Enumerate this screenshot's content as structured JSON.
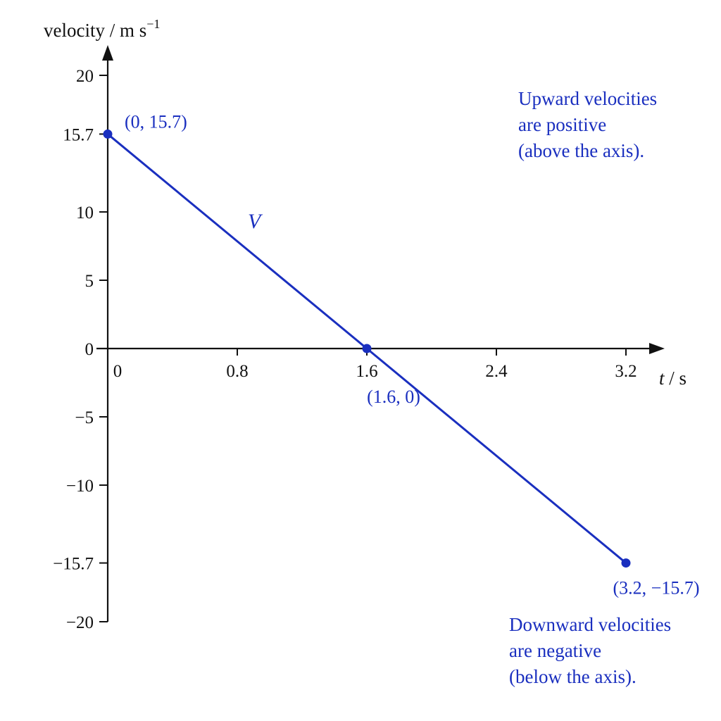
{
  "chart_data": {
    "type": "line",
    "title": "",
    "ylabel": "velocity / m s",
    "ylabel_superscript": "−1",
    "xlabel_var": "t",
    "xlabel_unit": " / s",
    "xlim": [
      0,
      3.2
    ],
    "ylim": [
      -20,
      20
    ],
    "x_ticks": [
      {
        "value": 0,
        "label": "0"
      },
      {
        "value": 0.8,
        "label": "0.8"
      },
      {
        "value": 1.6,
        "label": "1.6"
      },
      {
        "value": 2.4,
        "label": "2.4"
      },
      {
        "value": 3.2,
        "label": "3.2"
      }
    ],
    "y_ticks": [
      {
        "value": 20,
        "label": "20"
      },
      {
        "value": 15.7,
        "label": "15.7"
      },
      {
        "value": 10,
        "label": "10"
      },
      {
        "value": 5,
        "label": "5"
      },
      {
        "value": 0,
        "label": "0"
      },
      {
        "value": -5,
        "label": "−5"
      },
      {
        "value": -10,
        "label": "−10"
      },
      {
        "value": -15.7,
        "label": "−15.7"
      },
      {
        "value": -20,
        "label": "−20"
      }
    ],
    "grid": false,
    "series": [
      {
        "name": "V",
        "x": [
          0,
          1.6,
          3.2
        ],
        "y": [
          15.7,
          0,
          -15.7
        ]
      }
    ],
    "point_labels": [
      {
        "x": 0,
        "y": 15.7,
        "label": "(0, 15.7)"
      },
      {
        "x": 1.6,
        "y": 0,
        "label": "(1.6, 0)"
      },
      {
        "x": 3.2,
        "y": -15.7,
        "label": "(3.2, −15.7)"
      }
    ],
    "annotations": [
      {
        "lines": [
          "Upward velocities",
          "are positive",
          "(above the axis)."
        ]
      },
      {
        "lines": [
          "Downward velocities",
          "are negative",
          "(below the axis)."
        ]
      }
    ],
    "colors": {
      "series": "#1a2fbf",
      "axes": "#111111"
    }
  }
}
